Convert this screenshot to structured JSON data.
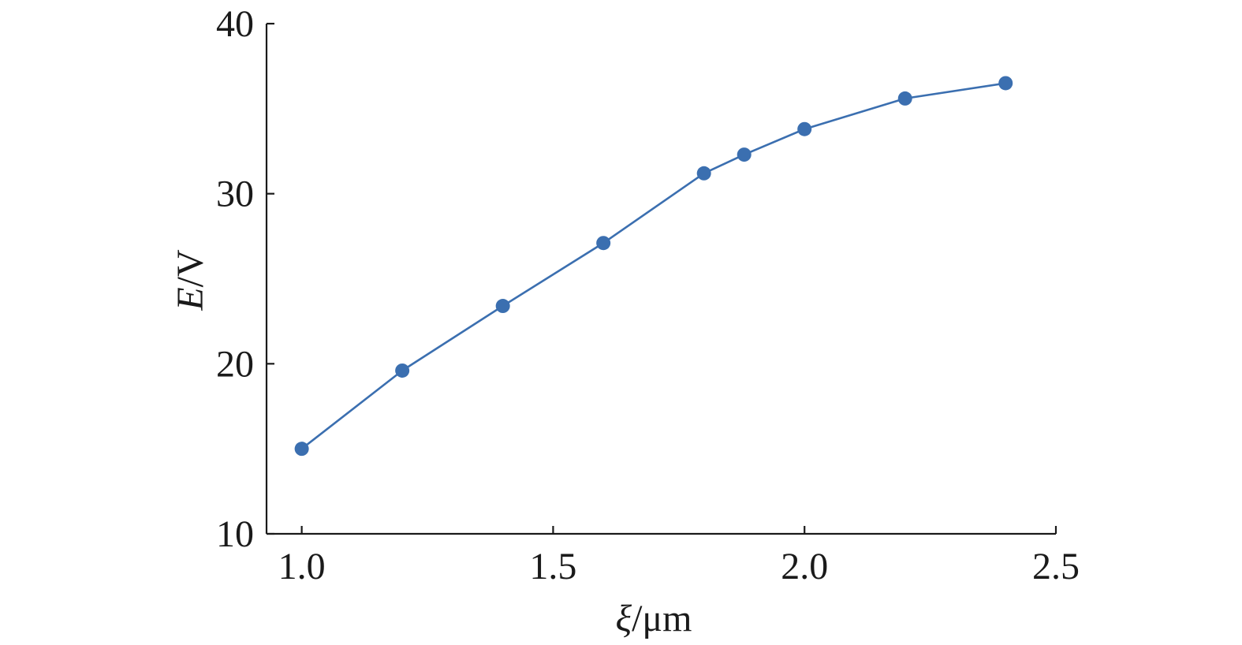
{
  "chart_data": {
    "type": "line",
    "title": "",
    "xlabel": {
      "symbol": "ξ",
      "unit": "/μm"
    },
    "ylabel": {
      "symbol": "E",
      "unit": "/V"
    },
    "xlim": [
      0.93,
      2.5
    ],
    "ylim": [
      10,
      40
    ],
    "xticks": [
      1.0,
      1.5,
      2.0,
      2.5
    ],
    "xtick_labels": [
      "1.0",
      "1.5",
      "2.0",
      "2.5"
    ],
    "yticks": [
      10,
      20,
      30,
      40
    ],
    "ytick_labels": [
      "10",
      "20",
      "30",
      "40"
    ],
    "grid": false,
    "legend": null,
    "series": [
      {
        "color": "#3b6fb0",
        "marker": "circle",
        "x": [
          1.0,
          1.2,
          1.4,
          1.6,
          1.8,
          1.88,
          2.0,
          2.2,
          2.4
        ],
        "y": [
          15.0,
          19.6,
          23.4,
          27.1,
          31.2,
          32.3,
          33.8,
          35.6,
          36.5
        ]
      }
    ]
  }
}
